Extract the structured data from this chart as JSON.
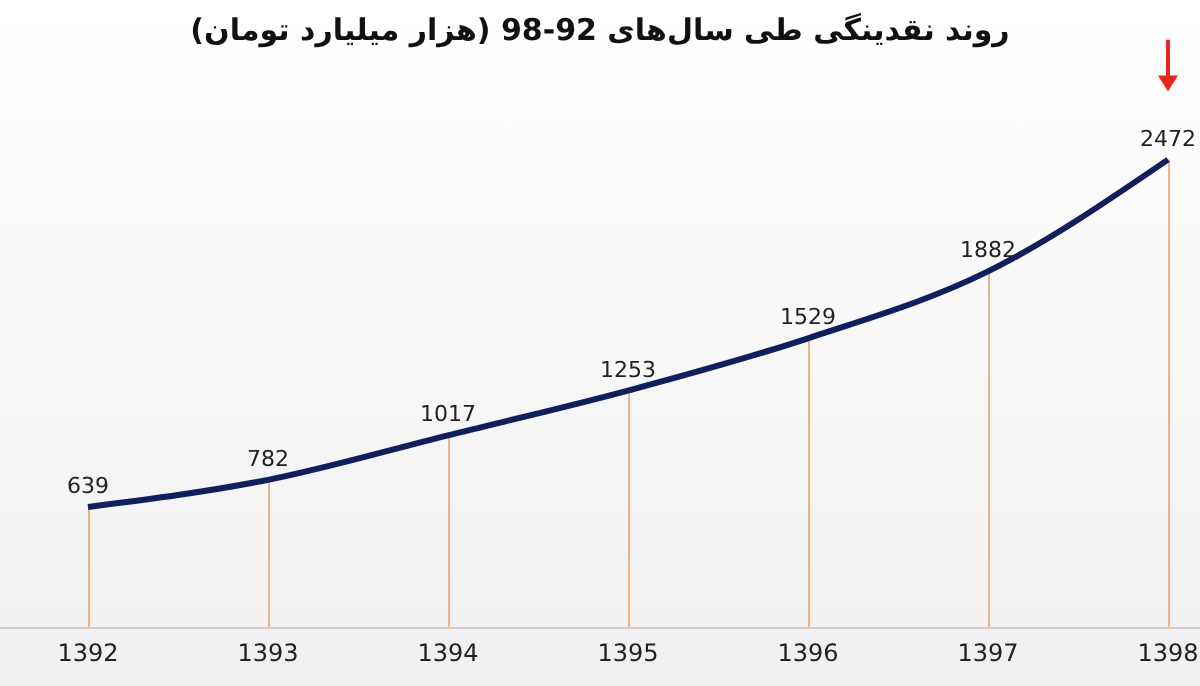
{
  "chart_data": {
    "type": "line",
    "title": "روند نقدینگی طی سال‌های 92-98 (هزار میلیارد تومان)",
    "categories": [
      "1392",
      "1393",
      "1394",
      "1395",
      "1396",
      "1397",
      "1398"
    ],
    "series": [
      {
        "type": "bar",
        "color": "#f4b183",
        "values": [
          639,
          782,
          1017,
          1253,
          1529,
          1882,
          2472
        ]
      },
      {
        "color": "#0f1f5c",
        "values": [
          639,
          782,
          1017,
          1253,
          1529,
          1882,
          2472
        ],
        "value_labels": [
          "639",
          "782",
          "1017",
          "1253",
          "1529",
          "1882",
          "2472"
        ]
      }
    ],
    "marker": "none",
    "line_style": "solid"
  }
}
